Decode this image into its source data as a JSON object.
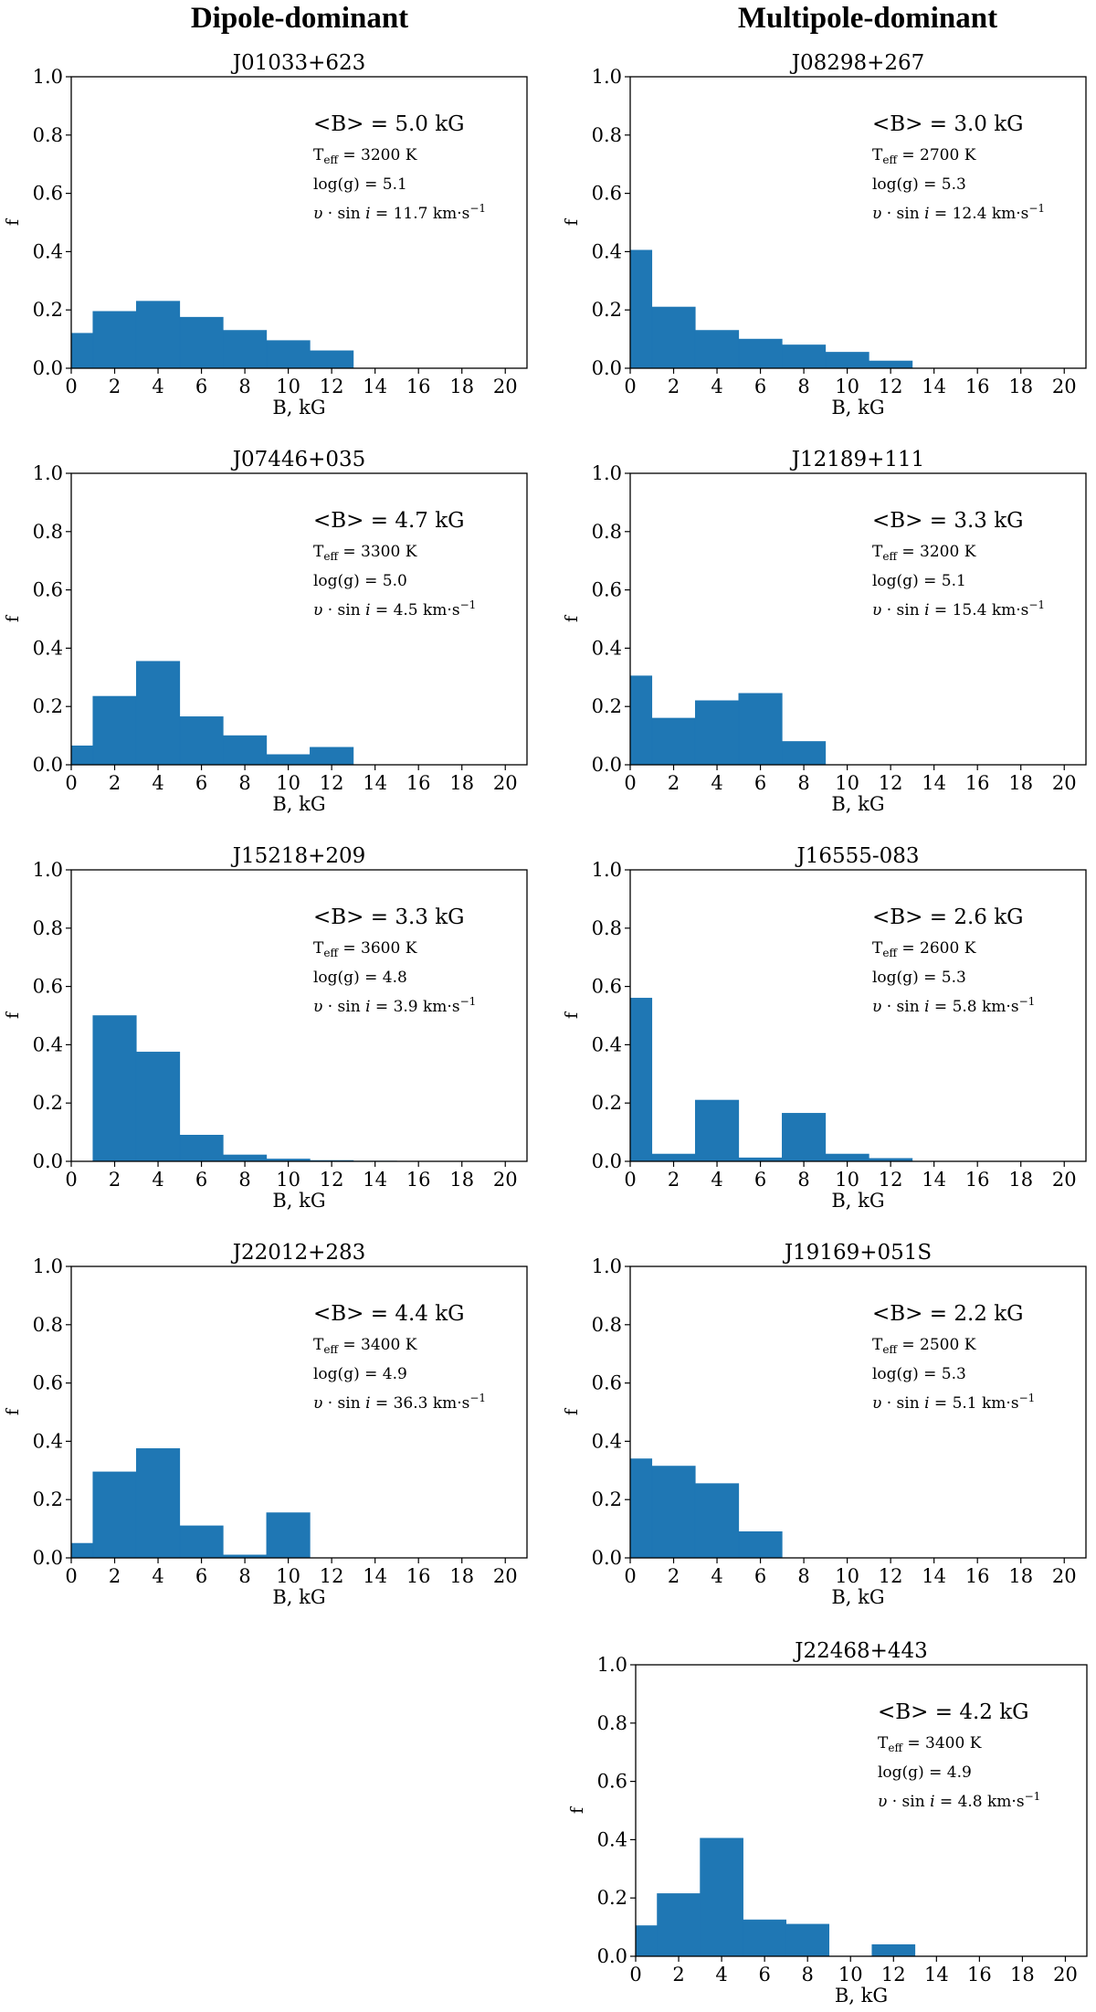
{
  "column_titles": {
    "left": "Dipole-dominant",
    "right": "Multipole-dominant"
  },
  "bar_color": "#1f77b4",
  "chart_data": [
    {
      "type": "bar",
      "name": "J01033+623",
      "column": "left",
      "bin_edges": [
        0,
        1,
        3,
        5,
        7,
        9,
        11,
        13,
        15,
        17,
        19,
        21
      ],
      "values": [
        0.12,
        0.195,
        0.23,
        0.175,
        0.13,
        0.095,
        0.06,
        0,
        0,
        0,
        0
      ],
      "xlabel": "B, kG",
      "ylabel": "f",
      "xlim": [
        0,
        21
      ],
      "ylim": [
        0,
        1.0
      ],
      "xticks": [
        0,
        2,
        4,
        6,
        8,
        10,
        12,
        14,
        16,
        18,
        20
      ],
      "yticks": [
        0.0,
        0.2,
        0.4,
        0.6,
        0.8,
        1.0
      ],
      "annotation": {
        "mean_b": "<B> = 5.0 kG",
        "teff": "= 3200 K",
        "logg": "log(g) = 5.1",
        "vsini": "= 11.7 km·s"
      }
    },
    {
      "type": "bar",
      "name": "J08298+267",
      "column": "right",
      "bin_edges": [
        0,
        1,
        3,
        5,
        7,
        9,
        11,
        13,
        15,
        17,
        19,
        21
      ],
      "values": [
        0.405,
        0.21,
        0.13,
        0.1,
        0.08,
        0.055,
        0.025,
        0,
        0,
        0,
        0
      ],
      "xlabel": "B, kG",
      "ylabel": "f",
      "xlim": [
        0,
        21
      ],
      "ylim": [
        0,
        1.0
      ],
      "xticks": [
        0,
        2,
        4,
        6,
        8,
        10,
        12,
        14,
        16,
        18,
        20
      ],
      "yticks": [
        0.0,
        0.2,
        0.4,
        0.6,
        0.8,
        1.0
      ],
      "annotation": {
        "mean_b": "<B> = 3.0 kG",
        "teff": "= 2700 K",
        "logg": "log(g) = 5.3",
        "vsini": "= 12.4 km·s"
      }
    },
    {
      "type": "bar",
      "name": "J07446+035",
      "column": "left",
      "bin_edges": [
        0,
        1,
        3,
        5,
        7,
        9,
        11,
        13,
        15,
        17,
        19,
        21
      ],
      "values": [
        0.065,
        0.235,
        0.355,
        0.165,
        0.1,
        0.035,
        0.06,
        0,
        0,
        0,
        0
      ],
      "xlabel": "B, kG",
      "ylabel": "f",
      "xlim": [
        0,
        21
      ],
      "ylim": [
        0,
        1.0
      ],
      "xticks": [
        0,
        2,
        4,
        6,
        8,
        10,
        12,
        14,
        16,
        18,
        20
      ],
      "yticks": [
        0.0,
        0.2,
        0.4,
        0.6,
        0.8,
        1.0
      ],
      "annotation": {
        "mean_b": "<B> = 4.7 kG",
        "teff": "= 3300 K",
        "logg": "log(g) = 5.0",
        "vsini": "= 4.5 km·s"
      }
    },
    {
      "type": "bar",
      "name": "J12189+111",
      "column": "right",
      "bin_edges": [
        0,
        1,
        3,
        5,
        7,
        9,
        11,
        13,
        15,
        17,
        19,
        21
      ],
      "values": [
        0.305,
        0.16,
        0.22,
        0.245,
        0.08,
        0,
        0,
        0,
        0,
        0,
        0
      ],
      "xlabel": "B, kG",
      "ylabel": "f",
      "xlim": [
        0,
        21
      ],
      "ylim": [
        0,
        1.0
      ],
      "xticks": [
        0,
        2,
        4,
        6,
        8,
        10,
        12,
        14,
        16,
        18,
        20
      ],
      "yticks": [
        0.0,
        0.2,
        0.4,
        0.6,
        0.8,
        1.0
      ],
      "annotation": {
        "mean_b": "<B> = 3.3 kG",
        "teff": "= 3200 K",
        "logg": "log(g) = 5.1",
        "vsini": "= 15.4 km·s"
      }
    },
    {
      "type": "bar",
      "name": "J15218+209",
      "column": "left",
      "bin_edges": [
        0,
        1,
        3,
        5,
        7,
        9,
        11,
        13,
        15,
        17,
        19,
        21
      ],
      "values": [
        0,
        0.5,
        0.375,
        0.09,
        0.022,
        0.008,
        0.003,
        0.001,
        0,
        0,
        0
      ],
      "xlabel": "B, kG",
      "ylabel": "f",
      "xlim": [
        0,
        21
      ],
      "ylim": [
        0,
        1.0
      ],
      "xticks": [
        0,
        2,
        4,
        6,
        8,
        10,
        12,
        14,
        16,
        18,
        20
      ],
      "yticks": [
        0.0,
        0.2,
        0.4,
        0.6,
        0.8,
        1.0
      ],
      "annotation": {
        "mean_b": "<B> = 3.3 kG",
        "teff": "= 3600 K",
        "logg": "log(g) = 4.8",
        "vsini": "= 3.9 km·s"
      }
    },
    {
      "type": "bar",
      "name": "J16555-083",
      "column": "right",
      "bin_edges": [
        0,
        1,
        3,
        5,
        7,
        9,
        11,
        13,
        15,
        17,
        19,
        21
      ],
      "values": [
        0.56,
        0.025,
        0.21,
        0.012,
        0.165,
        0.025,
        0.01,
        0,
        0,
        0,
        0
      ],
      "xlabel": "B, kG",
      "ylabel": "f",
      "xlim": [
        0,
        21
      ],
      "ylim": [
        0,
        1.0
      ],
      "xticks": [
        0,
        2,
        4,
        6,
        8,
        10,
        12,
        14,
        16,
        18,
        20
      ],
      "yticks": [
        0.0,
        0.2,
        0.4,
        0.6,
        0.8,
        1.0
      ],
      "annotation": {
        "mean_b": "<B> = 2.6 kG",
        "teff": "= 2600 K",
        "logg": "log(g) = 5.3",
        "vsini": "= 5.8 km·s"
      }
    },
    {
      "type": "bar",
      "name": "J22012+283",
      "column": "left",
      "bin_edges": [
        0,
        1,
        3,
        5,
        7,
        9,
        11,
        13,
        15,
        17,
        19,
        21
      ],
      "values": [
        0.05,
        0.295,
        0.375,
        0.11,
        0.01,
        0.155,
        0,
        0,
        0,
        0,
        0
      ],
      "xlabel": "B, kG",
      "ylabel": "f",
      "xlim": [
        0,
        21
      ],
      "ylim": [
        0,
        1.0
      ],
      "xticks": [
        0,
        2,
        4,
        6,
        8,
        10,
        12,
        14,
        16,
        18,
        20
      ],
      "yticks": [
        0.0,
        0.2,
        0.4,
        0.6,
        0.8,
        1.0
      ],
      "annotation": {
        "mean_b": "<B> = 4.4 kG",
        "teff": "= 3400 K",
        "logg": "log(g) = 4.9",
        "vsini": "= 36.3 km·s"
      }
    },
    {
      "type": "bar",
      "name": "J19169+051S",
      "column": "right",
      "bin_edges": [
        0,
        1,
        3,
        5,
        7,
        9,
        11,
        13,
        15,
        17,
        19,
        21
      ],
      "values": [
        0.34,
        0.315,
        0.255,
        0.09,
        0,
        0,
        0,
        0,
        0,
        0,
        0
      ],
      "xlabel": "B, kG",
      "ylabel": "f",
      "xlim": [
        0,
        21
      ],
      "ylim": [
        0,
        1.0
      ],
      "xticks": [
        0,
        2,
        4,
        6,
        8,
        10,
        12,
        14,
        16,
        18,
        20
      ],
      "yticks": [
        0.0,
        0.2,
        0.4,
        0.6,
        0.8,
        1.0
      ],
      "annotation": {
        "mean_b": "<B> = 2.2 kG",
        "teff": "= 2500 K",
        "logg": "log(g) = 5.3",
        "vsini": "= 5.1 km·s"
      }
    },
    {
      "type": "bar",
      "name": "J22468+443",
      "column": "right",
      "bin_edges": [
        0,
        1,
        3,
        5,
        7,
        9,
        11,
        13,
        15,
        17,
        19,
        21
      ],
      "values": [
        0.105,
        0.215,
        0.405,
        0.125,
        0.11,
        0,
        0.04,
        0,
        0,
        0,
        0
      ],
      "xlabel": "B, kG",
      "ylabel": "f",
      "xlim": [
        0,
        21
      ],
      "ylim": [
        0,
        1.0
      ],
      "xticks": [
        0,
        2,
        4,
        6,
        8,
        10,
        12,
        14,
        16,
        18,
        20
      ],
      "yticks": [
        0.0,
        0.2,
        0.4,
        0.6,
        0.8,
        1.0
      ],
      "annotation": {
        "mean_b": "<B> = 4.2 kG",
        "teff": "= 3400 K",
        "logg": "log(g) = 4.9",
        "vsini": "= 4.8 km·s"
      }
    }
  ]
}
